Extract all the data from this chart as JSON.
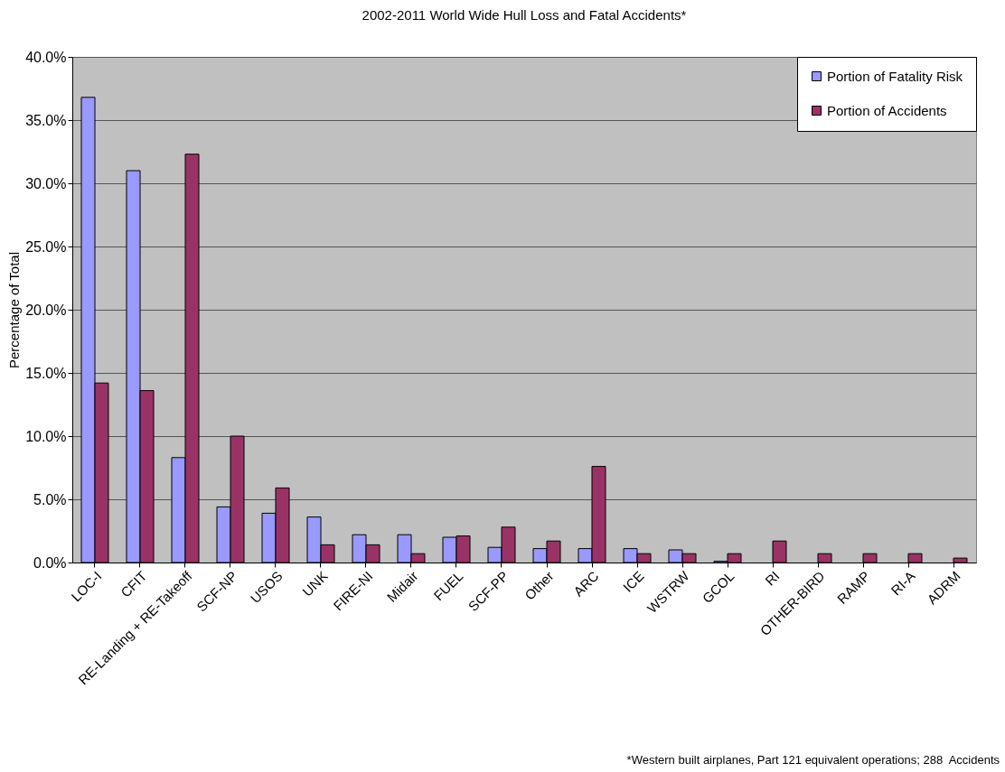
{
  "chart_data": {
    "type": "bar",
    "title": "2002-2011 World Wide Hull Loss and Fatal Accidents*",
    "ylabel": "Percentage of Total",
    "categories": [
      "LOC-I",
      "CFIT",
      "RE-Landing + RE-Takeoff",
      "SCF-NP",
      "USOS",
      "UNK",
      "FIRE-NI",
      "Midair",
      "FUEL",
      "SCF-PP",
      "Other",
      "ARC",
      "ICE",
      "WSTRW",
      "GCOL",
      "RI",
      "OTHER-BIRD",
      "RAMP",
      "RI-A",
      "ADRM"
    ],
    "series": [
      {
        "name": "Portion of Fatality Risk",
        "color": "#9999ff",
        "values": [
          36.8,
          31.0,
          8.3,
          4.4,
          3.9,
          3.6,
          2.2,
          2.2,
          2.0,
          1.2,
          1.1,
          1.1,
          1.1,
          1.0,
          0.1,
          null,
          null,
          null,
          null,
          null
        ]
      },
      {
        "name": "Portion of Accidents",
        "color": "#993366",
        "values": [
          14.2,
          13.6,
          32.3,
          10.0,
          5.9,
          1.4,
          1.4,
          0.7,
          2.1,
          2.8,
          1.7,
          7.6,
          0.7,
          0.7,
          0.7,
          1.7,
          0.7,
          0.7,
          0.7,
          0.35
        ]
      }
    ],
    "ylim": [
      0,
      40
    ],
    "yticks": [
      {
        "value": 0,
        "label": "0.0%"
      },
      {
        "value": 5,
        "label": "5.0%"
      },
      {
        "value": 10,
        "label": "10.0%"
      },
      {
        "value": 15,
        "label": "15.0%"
      },
      {
        "value": 20,
        "label": "20.0%"
      },
      {
        "value": 25,
        "label": "25.0%"
      },
      {
        "value": 30,
        "label": "30.0%"
      },
      {
        "value": 35,
        "label": "35.0%"
      },
      {
        "value": 40,
        "label": "40.0%"
      }
    ],
    "grid": "y",
    "legend": "top right",
    "annotations": [
      "*Western built airplanes, Part 121 equivalent operations; 288  Accidents"
    ]
  }
}
